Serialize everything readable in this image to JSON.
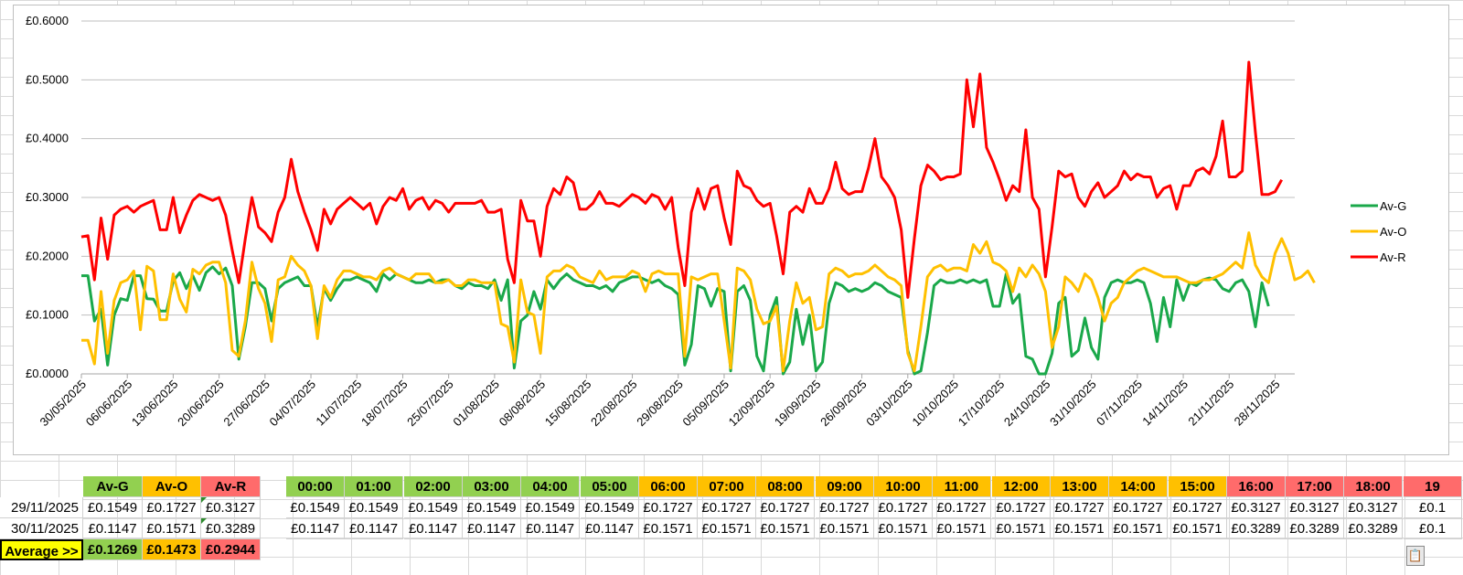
{
  "chart_data": {
    "type": "line",
    "title": "",
    "ylabel": "",
    "xlabel": "",
    "ylim": [
      0,
      0.6
    ],
    "y_ticks": [
      "£0.0000",
      "£0.1000",
      "£0.2000",
      "£0.3000",
      "£0.4000",
      "£0.5000",
      "£0.6000"
    ],
    "x_ticks": [
      "30/05/2025",
      "06/06/2025",
      "13/06/2025",
      "20/06/2025",
      "27/06/2025",
      "04/07/2025",
      "11/07/2025",
      "18/07/2025",
      "25/07/2025",
      "01/08/2025",
      "08/08/2025",
      "15/08/2025",
      "22/08/2025",
      "29/08/2025",
      "05/09/2025",
      "12/09/2025",
      "19/09/2025",
      "26/09/2025",
      "03/10/2025",
      "10/10/2025",
      "17/10/2025",
      "24/10/2025",
      "31/10/2025",
      "07/11/2025",
      "14/11/2025",
      "21/11/2025",
      "28/11/2025"
    ],
    "n_points": 186,
    "legend_position": "right",
    "series": [
      {
        "name": "Av-G",
        "color": "#1aa84a",
        "values": [
          0.167,
          0.167,
          0.09,
          0.11,
          0.015,
          0.1,
          0.128,
          0.125,
          0.167,
          0.167,
          0.128,
          0.127,
          0.107,
          0.107,
          0.158,
          0.172,
          0.145,
          0.167,
          0.142,
          0.172,
          0.182,
          0.17,
          0.18,
          0.15,
          0.025,
          0.08,
          0.155,
          0.155,
          0.145,
          0.09,
          0.145,
          0.155,
          0.16,
          0.165,
          0.15,
          0.15,
          0.08,
          0.145,
          0.125,
          0.145,
          0.16,
          0.16,
          0.165,
          0.16,
          0.155,
          0.14,
          0.17,
          0.16,
          0.17,
          0.165,
          0.16,
          0.155,
          0.155,
          0.16,
          0.155,
          0.16,
          0.16,
          0.15,
          0.145,
          0.155,
          0.15,
          0.15,
          0.145,
          0.16,
          0.125,
          0.16,
          0.01,
          0.09,
          0.1,
          0.14,
          0.11,
          0.16,
          0.145,
          0.16,
          0.17,
          0.16,
          0.155,
          0.15,
          0.15,
          0.145,
          0.15,
          0.14,
          0.155,
          0.16,
          0.165,
          0.165,
          0.16,
          0.155,
          0.16,
          0.15,
          0.145,
          0.135,
          0.015,
          0.05,
          0.15,
          0.145,
          0.115,
          0.145,
          0.14,
          0.005,
          0.14,
          0.15,
          0.125,
          0.03,
          0.005,
          0.1,
          0.13,
          0,
          0.02,
          0.11,
          0.05,
          0.1,
          0.005,
          0.02,
          0.12,
          0.155,
          0.15,
          0.14,
          0.145,
          0.14,
          0.145,
          0.155,
          0.15,
          0.14,
          0.135,
          0.13,
          0.04,
          0,
          0.005,
          0.07,
          0.15,
          0.16,
          0.155,
          0.155,
          0.16,
          0.155,
          0.16,
          0.155,
          0.16,
          0.115,
          0.115,
          0.17,
          0.12,
          0.135,
          0.03,
          0.025,
          0,
          0,
          0.035,
          0.12,
          0.13,
          0.03,
          0.04,
          0.095,
          0.045,
          0.025,
          0.13,
          0.155,
          0.16,
          0.155,
          0.155,
          0.16,
          0.155,
          0.12,
          0.055,
          0.13,
          0.08,
          0.16,
          0.125,
          0.155,
          0.15,
          0.16,
          0.163,
          0.16,
          0.145,
          0.14,
          0.155,
          0.16,
          0.14,
          0.08,
          0.155,
          0.115
        ]
      },
      {
        "name": "Av-O",
        "color": "#ffc000",
        "values": [
          0.057,
          0.057,
          0.017,
          0.14,
          0.035,
          0.125,
          0.155,
          0.16,
          0.175,
          0.075,
          0.183,
          0.175,
          0.092,
          0.092,
          0.17,
          0.127,
          0.105,
          0.178,
          0.17,
          0.185,
          0.19,
          0.19,
          0.155,
          0.04,
          0.03,
          0.09,
          0.19,
          0.145,
          0.12,
          0.055,
          0.16,
          0.165,
          0.2,
          0.185,
          0.175,
          0.15,
          0.06,
          0.15,
          0.13,
          0.16,
          0.175,
          0.175,
          0.17,
          0.165,
          0.165,
          0.16,
          0.175,
          0.18,
          0.17,
          0.165,
          0.16,
          0.17,
          0.17,
          0.17,
          0.155,
          0.155,
          0.16,
          0.15,
          0.15,
          0.16,
          0.16,
          0.155,
          0.155,
          0.155,
          0.085,
          0.08,
          0.02,
          0.16,
          0.105,
          0.1,
          0.035,
          0.165,
          0.175,
          0.175,
          0.185,
          0.18,
          0.165,
          0.16,
          0.155,
          0.175,
          0.16,
          0.165,
          0.165,
          0.165,
          0.175,
          0.17,
          0.14,
          0.17,
          0.175,
          0.17,
          0.17,
          0.17,
          0.03,
          0.165,
          0.16,
          0.165,
          0.17,
          0.17,
          0.09,
          0.01,
          0.18,
          0.175,
          0.16,
          0.11,
          0.085,
          0.09,
          0.115,
          0.005,
          0.09,
          0.155,
          0.12,
          0.13,
          0.075,
          0.08,
          0.17,
          0.18,
          0.175,
          0.165,
          0.17,
          0.17,
          0.175,
          0.185,
          0.175,
          0.165,
          0.16,
          0.15,
          0.035,
          0.005,
          0.08,
          0.165,
          0.18,
          0.185,
          0.175,
          0.18,
          0.18,
          0.175,
          0.22,
          0.205,
          0.225,
          0.19,
          0.185,
          0.175,
          0.14,
          0.18,
          0.165,
          0.185,
          0.17,
          0.14,
          0.045,
          0.08,
          0.165,
          0.155,
          0.14,
          0.17,
          0.16,
          0.13,
          0.09,
          0.12,
          0.13,
          0.155,
          0.165,
          0.175,
          0.18,
          0.175,
          0.17,
          0.165,
          0.165,
          0.165,
          0.16,
          0.155,
          0.155,
          0.16,
          0.16,
          0.165,
          0.17,
          0.18,
          0.19,
          0.18,
          0.24,
          0.185,
          0.165,
          0.155,
          0.205,
          0.23,
          0.205,
          0.16,
          0.165,
          0.175,
          0.155
        ]
      },
      {
        "name": "Av-R",
        "color": "#ff0000",
        "values": [
          0.233,
          0.235,
          0.16,
          0.265,
          0.195,
          0.27,
          0.28,
          0.285,
          0.275,
          0.285,
          0.29,
          0.295,
          0.245,
          0.245,
          0.3,
          0.24,
          0.27,
          0.295,
          0.305,
          0.3,
          0.295,
          0.3,
          0.27,
          0.21,
          0.155,
          0.23,
          0.3,
          0.25,
          0.24,
          0.225,
          0.275,
          0.3,
          0.365,
          0.31,
          0.275,
          0.245,
          0.21,
          0.28,
          0.255,
          0.28,
          0.29,
          0.3,
          0.29,
          0.28,
          0.29,
          0.255,
          0.285,
          0.3,
          0.295,
          0.315,
          0.28,
          0.295,
          0.3,
          0.28,
          0.295,
          0.29,
          0.275,
          0.29,
          0.29,
          0.29,
          0.29,
          0.295,
          0.275,
          0.275,
          0.28,
          0.195,
          0.155,
          0.295,
          0.26,
          0.26,
          0.2,
          0.285,
          0.315,
          0.305,
          0.335,
          0.325,
          0.28,
          0.28,
          0.29,
          0.31,
          0.29,
          0.29,
          0.285,
          0.295,
          0.305,
          0.3,
          0.29,
          0.305,
          0.3,
          0.28,
          0.3,
          0.215,
          0.15,
          0.275,
          0.315,
          0.28,
          0.315,
          0.32,
          0.265,
          0.22,
          0.345,
          0.32,
          0.315,
          0.295,
          0.285,
          0.29,
          0.235,
          0.17,
          0.275,
          0.285,
          0.275,
          0.315,
          0.29,
          0.29,
          0.315,
          0.36,
          0.315,
          0.305,
          0.31,
          0.31,
          0.35,
          0.4,
          0.335,
          0.32,
          0.3,
          0.245,
          0.13,
          0.23,
          0.32,
          0.355,
          0.345,
          0.33,
          0.335,
          0.335,
          0.34,
          0.5,
          0.42,
          0.51,
          0.385,
          0.36,
          0.33,
          0.295,
          0.32,
          0.31,
          0.415,
          0.3,
          0.28,
          0.165,
          0.25,
          0.345,
          0.335,
          0.34,
          0.3,
          0.285,
          0.31,
          0.325,
          0.3,
          0.31,
          0.32,
          0.345,
          0.33,
          0.34,
          0.335,
          0.335,
          0.3,
          0.315,
          0.32,
          0.28,
          0.32,
          0.32,
          0.345,
          0.35,
          0.34,
          0.37,
          0.43,
          0.335,
          0.335,
          0.345,
          0.53,
          0.41,
          0.305,
          0.305,
          0.31,
          0.33
        ]
      }
    ]
  },
  "table": {
    "header_labels": {
      "av_g": "Av-G",
      "av_o": "Av-O",
      "av_r": "Av-R"
    },
    "hours": [
      "00:00",
      "01:00",
      "02:00",
      "03:00",
      "04:00",
      "05:00",
      "06:00",
      "07:00",
      "08:00",
      "09:00",
      "10:00",
      "11:00",
      "12:00",
      "13:00",
      "14:00",
      "15:00",
      "16:00",
      "17:00",
      "18:00",
      "19"
    ],
    "rows": [
      {
        "date": "29/11/2025",
        "av_g": "£0.1549",
        "av_o": "£0.1727",
        "av_r": "£0.3127",
        "values": [
          "£0.1549",
          "£0.1549",
          "£0.1549",
          "£0.1549",
          "£0.1549",
          "£0.1549",
          "£0.1727",
          "£0.1727",
          "£0.1727",
          "£0.1727",
          "£0.1727",
          "£0.1727",
          "£0.1727",
          "£0.1727",
          "£0.1727",
          "£0.1727",
          "£0.3127",
          "£0.3127",
          "£0.3127",
          "£0.1"
        ]
      },
      {
        "date": "30/11/2025",
        "av_g": "£0.1147",
        "av_o": "£0.1571",
        "av_r": "£0.3289",
        "values": [
          "£0.1147",
          "£0.1147",
          "£0.1147",
          "£0.1147",
          "£0.1147",
          "£0.1147",
          "£0.1571",
          "£0.1571",
          "£0.1571",
          "£0.1571",
          "£0.1571",
          "£0.1571",
          "£0.1571",
          "£0.1571",
          "£0.1571",
          "£0.1571",
          "£0.3289",
          "£0.3289",
          "£0.3289",
          "£0.1"
        ]
      }
    ],
    "average": {
      "label": "Average >>",
      "av_g": "£0.1269",
      "av_o": "£0.1473",
      "av_r": "£0.2944"
    }
  }
}
